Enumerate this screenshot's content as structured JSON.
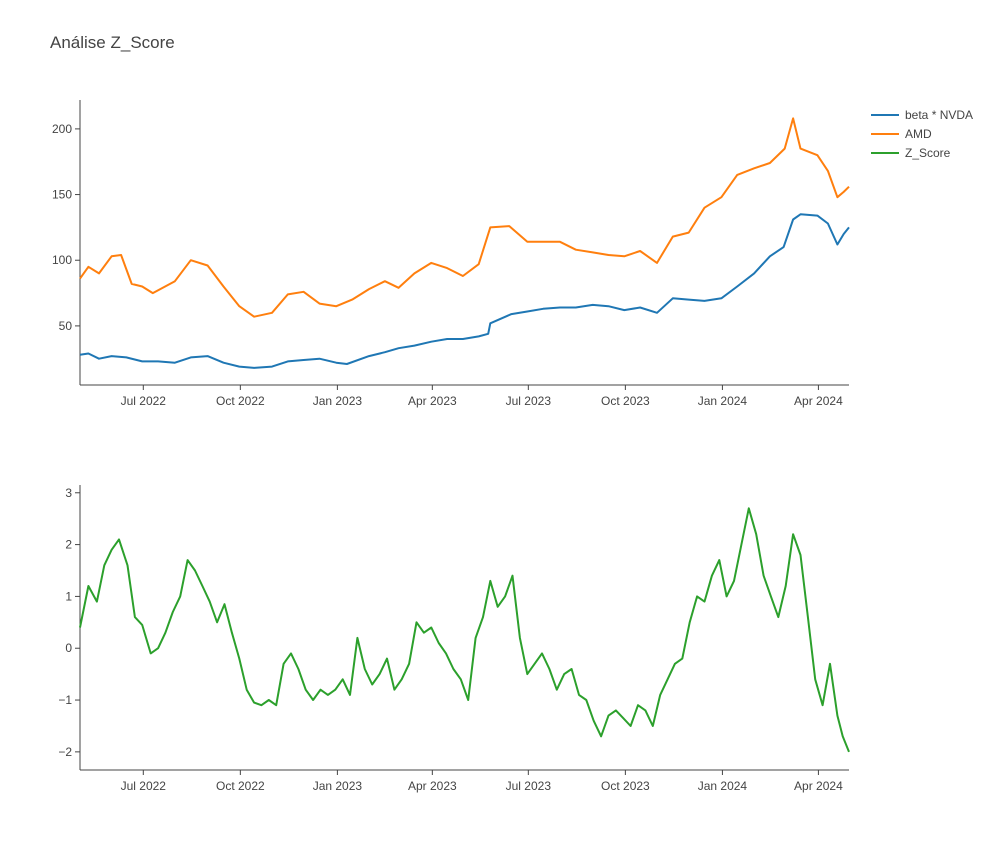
{
  "chart_data": [
    {
      "type": "line",
      "title": "Análise Z_Score",
      "x_ticks": [
        "Jul 2022",
        "Oct 2022",
        "Jan 2023",
        "Apr 2023",
        "Jul 2023",
        "Oct 2023",
        "Jan 2024",
        "Apr 2024"
      ],
      "y_ticks": [
        50,
        100,
        150,
        200
      ],
      "ylim": [
        5,
        222
      ],
      "xlim": [
        "2022-05-02",
        "2024-04-30"
      ],
      "grid": false,
      "legend_position": "top-right",
      "series": [
        {
          "name": "beta * NVDA",
          "color": "#1f77b4",
          "points": [
            [
              "2022-05-02",
              28
            ],
            [
              "2022-05-10",
              29
            ],
            [
              "2022-05-20",
              25
            ],
            [
              "2022-06-01",
              27
            ],
            [
              "2022-06-15",
              26
            ],
            [
              "2022-06-30",
              23
            ],
            [
              "2022-07-15",
              23
            ],
            [
              "2022-07-31",
              22
            ],
            [
              "2022-08-15",
              26
            ],
            [
              "2022-08-31",
              27
            ],
            [
              "2022-09-15",
              22
            ],
            [
              "2022-09-30",
              19
            ],
            [
              "2022-10-14",
              18
            ],
            [
              "2022-10-31",
              19
            ],
            [
              "2022-11-15",
              23
            ],
            [
              "2022-11-30",
              24
            ],
            [
              "2022-12-15",
              25
            ],
            [
              "2022-12-31",
              22
            ],
            [
              "2023-01-10",
              21
            ],
            [
              "2023-01-31",
              27
            ],
            [
              "2023-02-15",
              30
            ],
            [
              "2023-02-28",
              33
            ],
            [
              "2023-03-15",
              35
            ],
            [
              "2023-03-31",
              38
            ],
            [
              "2023-04-15",
              40
            ],
            [
              "2023-04-30",
              40
            ],
            [
              "2023-05-15",
              42
            ],
            [
              "2023-05-24",
              44
            ],
            [
              "2023-05-26",
              52
            ],
            [
              "2023-06-15",
              59
            ],
            [
              "2023-06-30",
              61
            ],
            [
              "2023-07-15",
              63
            ],
            [
              "2023-07-31",
              64
            ],
            [
              "2023-08-15",
              64
            ],
            [
              "2023-08-31",
              66
            ],
            [
              "2023-09-15",
              65
            ],
            [
              "2023-09-30",
              62
            ],
            [
              "2023-10-15",
              64
            ],
            [
              "2023-10-31",
              60
            ],
            [
              "2023-11-15",
              71
            ],
            [
              "2023-11-30",
              70
            ],
            [
              "2023-12-15",
              69
            ],
            [
              "2023-12-31",
              71
            ],
            [
              "2024-01-15",
              80
            ],
            [
              "2024-01-31",
              90
            ],
            [
              "2024-02-15",
              103
            ],
            [
              "2024-02-28",
              110
            ],
            [
              "2024-03-08",
              131
            ],
            [
              "2024-03-15",
              135
            ],
            [
              "2024-03-31",
              134
            ],
            [
              "2024-04-10",
              128
            ],
            [
              "2024-04-19",
              112
            ],
            [
              "2024-04-25",
              120
            ],
            [
              "2024-04-30",
              125
            ]
          ]
        },
        {
          "name": "AMD",
          "color": "#ff7f0e",
          "points": [
            [
              "2022-05-02",
              86
            ],
            [
              "2022-05-10",
              95
            ],
            [
              "2022-05-20",
              90
            ],
            [
              "2022-06-01",
              103
            ],
            [
              "2022-06-10",
              104
            ],
            [
              "2022-06-20",
              82
            ],
            [
              "2022-06-30",
              80
            ],
            [
              "2022-07-10",
              75
            ],
            [
              "2022-07-31",
              84
            ],
            [
              "2022-08-15",
              100
            ],
            [
              "2022-08-31",
              96
            ],
            [
              "2022-09-15",
              80
            ],
            [
              "2022-09-30",
              65
            ],
            [
              "2022-10-14",
              57
            ],
            [
              "2022-10-31",
              60
            ],
            [
              "2022-11-15",
              74
            ],
            [
              "2022-11-30",
              76
            ],
            [
              "2022-12-15",
              67
            ],
            [
              "2022-12-31",
              65
            ],
            [
              "2023-01-15",
              70
            ],
            [
              "2023-01-31",
              78
            ],
            [
              "2023-02-15",
              84
            ],
            [
              "2023-02-28",
              79
            ],
            [
              "2023-03-15",
              90
            ],
            [
              "2023-03-31",
              98
            ],
            [
              "2023-04-15",
              94
            ],
            [
              "2023-04-30",
              88
            ],
            [
              "2023-05-15",
              97
            ],
            [
              "2023-05-26",
              125
            ],
            [
              "2023-06-13",
              126
            ],
            [
              "2023-06-30",
              114
            ],
            [
              "2023-07-15",
              114
            ],
            [
              "2023-07-31",
              114
            ],
            [
              "2023-08-15",
              108
            ],
            [
              "2023-08-31",
              106
            ],
            [
              "2023-09-15",
              104
            ],
            [
              "2023-09-30",
              103
            ],
            [
              "2023-10-15",
              107
            ],
            [
              "2023-10-31",
              98
            ],
            [
              "2023-11-15",
              118
            ],
            [
              "2023-11-30",
              121
            ],
            [
              "2023-12-15",
              140
            ],
            [
              "2023-12-31",
              148
            ],
            [
              "2024-01-15",
              165
            ],
            [
              "2024-01-31",
              170
            ],
            [
              "2024-02-15",
              174
            ],
            [
              "2024-02-29",
              185
            ],
            [
              "2024-03-08",
              208
            ],
            [
              "2024-03-15",
              185
            ],
            [
              "2024-03-31",
              180
            ],
            [
              "2024-04-10",
              168
            ],
            [
              "2024-04-19",
              148
            ],
            [
              "2024-04-25",
              152
            ],
            [
              "2024-04-30",
              156
            ]
          ]
        }
      ]
    },
    {
      "type": "line",
      "title": "",
      "x_ticks": [
        "Jul 2022",
        "Oct 2022",
        "Jan 2023",
        "Apr 2023",
        "Jul 2023",
        "Oct 2023",
        "Jan 2024",
        "Apr 2024"
      ],
      "y_ticks": [
        3,
        2,
        1,
        0,
        -1,
        -2
      ],
      "y_tick_labels": [
        "3",
        "2",
        "1",
        "0",
        "−1",
        "−2"
      ],
      "ylim": [
        -2.35,
        3.15
      ],
      "xlim": [
        "2022-05-02",
        "2024-04-30"
      ],
      "grid": false,
      "series": [
        {
          "name": "Z_Score",
          "color": "#2ca02c",
          "points": [
            [
              "2022-05-02",
              0.4
            ],
            [
              "2022-05-10",
              1.2
            ],
            [
              "2022-05-18",
              0.9
            ],
            [
              "2022-05-25",
              1.6
            ],
            [
              "2022-06-01",
              1.9
            ],
            [
              "2022-06-08",
              2.1
            ],
            [
              "2022-06-16",
              1.6
            ],
            [
              "2022-06-23",
              0.6
            ],
            [
              "2022-06-30",
              0.45
            ],
            [
              "2022-07-08",
              -0.1
            ],
            [
              "2022-07-15",
              0.0
            ],
            [
              "2022-07-22",
              0.3
            ],
            [
              "2022-07-29",
              0.7
            ],
            [
              "2022-08-05",
              1.0
            ],
            [
              "2022-08-12",
              1.7
            ],
            [
              "2022-08-19",
              1.5
            ],
            [
              "2022-08-26",
              1.2
            ],
            [
              "2022-09-02",
              0.9
            ],
            [
              "2022-09-09",
              0.5
            ],
            [
              "2022-09-16",
              0.85
            ],
            [
              "2022-09-23",
              0.3
            ],
            [
              "2022-09-30",
              -0.2
            ],
            [
              "2022-10-07",
              -0.8
            ],
            [
              "2022-10-14",
              -1.05
            ],
            [
              "2022-10-21",
              -1.1
            ],
            [
              "2022-10-28",
              -1.0
            ],
            [
              "2022-11-04",
              -1.1
            ],
            [
              "2022-11-11",
              -0.3
            ],
            [
              "2022-11-18",
              -0.1
            ],
            [
              "2022-11-25",
              -0.4
            ],
            [
              "2022-12-02",
              -0.8
            ],
            [
              "2022-12-09",
              -1.0
            ],
            [
              "2022-12-16",
              -0.8
            ],
            [
              "2022-12-23",
              -0.9
            ],
            [
              "2022-12-30",
              -0.8
            ],
            [
              "2023-01-06",
              -0.6
            ],
            [
              "2023-01-13",
              -0.9
            ],
            [
              "2023-01-20",
              0.2
            ],
            [
              "2023-01-27",
              -0.4
            ],
            [
              "2023-02-03",
              -0.7
            ],
            [
              "2023-02-10",
              -0.5
            ],
            [
              "2023-02-17",
              -0.2
            ],
            [
              "2023-02-24",
              -0.8
            ],
            [
              "2023-03-03",
              -0.6
            ],
            [
              "2023-03-10",
              -0.3
            ],
            [
              "2023-03-17",
              0.5
            ],
            [
              "2023-03-24",
              0.3
            ],
            [
              "2023-03-31",
              0.4
            ],
            [
              "2023-04-07",
              0.1
            ],
            [
              "2023-04-14",
              -0.1
            ],
            [
              "2023-04-21",
              -0.4
            ],
            [
              "2023-04-28",
              -0.6
            ],
            [
              "2023-05-05",
              -1.0
            ],
            [
              "2023-05-12",
              0.2
            ],
            [
              "2023-05-19",
              0.6
            ],
            [
              "2023-05-26",
              1.3
            ],
            [
              "2023-06-02",
              0.8
            ],
            [
              "2023-06-09",
              1.0
            ],
            [
              "2023-06-16",
              1.4
            ],
            [
              "2023-06-23",
              0.2
            ],
            [
              "2023-06-30",
              -0.5
            ],
            [
              "2023-07-07",
              -0.3
            ],
            [
              "2023-07-14",
              -0.1
            ],
            [
              "2023-07-21",
              -0.4
            ],
            [
              "2023-07-28",
              -0.8
            ],
            [
              "2023-08-04",
              -0.5
            ],
            [
              "2023-08-11",
              -0.4
            ],
            [
              "2023-08-18",
              -0.9
            ],
            [
              "2023-08-25",
              -1.0
            ],
            [
              "2023-09-01",
              -1.4
            ],
            [
              "2023-09-08",
              -1.7
            ],
            [
              "2023-09-15",
              -1.3
            ],
            [
              "2023-09-22",
              -1.2
            ],
            [
              "2023-09-29",
              -1.35
            ],
            [
              "2023-10-06",
              -1.5
            ],
            [
              "2023-10-13",
              -1.1
            ],
            [
              "2023-10-20",
              -1.2
            ],
            [
              "2023-10-27",
              -1.5
            ],
            [
              "2023-11-03",
              -0.9
            ],
            [
              "2023-11-10",
              -0.6
            ],
            [
              "2023-11-17",
              -0.3
            ],
            [
              "2023-11-24",
              -0.2
            ],
            [
              "2023-12-01",
              0.5
            ],
            [
              "2023-12-08",
              1.0
            ],
            [
              "2023-12-15",
              0.9
            ],
            [
              "2023-12-22",
              1.4
            ],
            [
              "2023-12-29",
              1.7
            ],
            [
              "2024-01-05",
              1.0
            ],
            [
              "2024-01-12",
              1.3
            ],
            [
              "2024-01-19",
              2.0
            ],
            [
              "2024-01-26",
              2.7
            ],
            [
              "2024-02-02",
              2.2
            ],
            [
              "2024-02-09",
              1.4
            ],
            [
              "2024-02-16",
              1.0
            ],
            [
              "2024-02-23",
              0.6
            ],
            [
              "2024-03-01",
              1.2
            ],
            [
              "2024-03-08",
              2.2
            ],
            [
              "2024-03-15",
              1.8
            ],
            [
              "2024-03-22",
              0.6
            ],
            [
              "2024-03-29",
              -0.6
            ],
            [
              "2024-04-05",
              -1.1
            ],
            [
              "2024-04-12",
              -0.3
            ],
            [
              "2024-04-19",
              -1.3
            ],
            [
              "2024-04-24",
              -1.7
            ],
            [
              "2024-04-30",
              -2.0
            ]
          ]
        }
      ]
    }
  ],
  "legend": [
    {
      "label": "beta * NVDA",
      "color": "#1f77b4"
    },
    {
      "label": "AMD",
      "color": "#ff7f0e"
    },
    {
      "label": "Z_Score",
      "color": "#2ca02c"
    }
  ]
}
